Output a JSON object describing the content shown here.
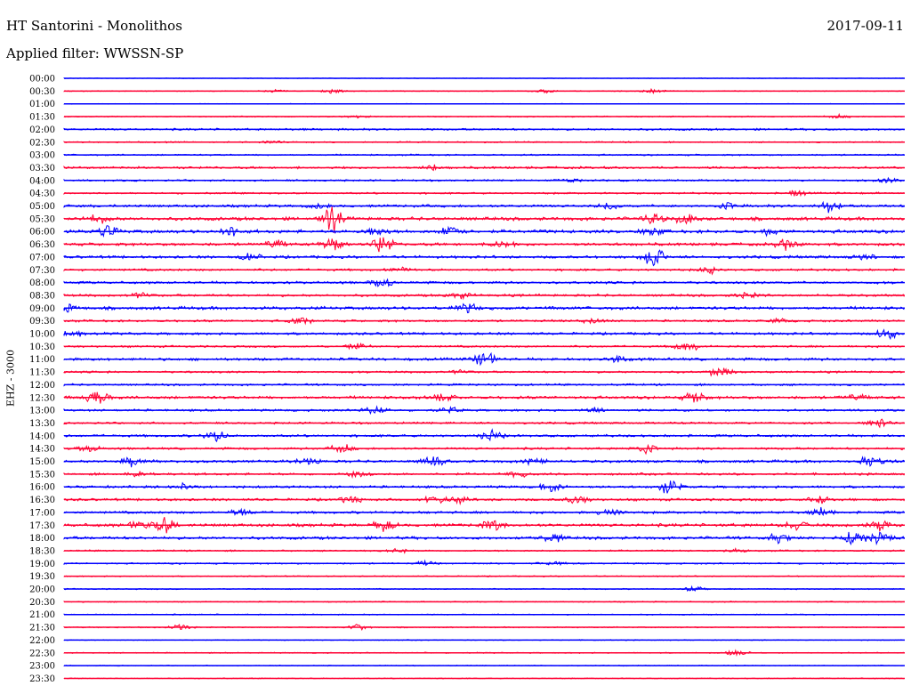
{
  "header": {
    "station": "HT Santorini - Monolithos",
    "date": "2017-09-11",
    "filter_label": "Applied filter: WWSSN-SP"
  },
  "chart_data": {
    "type": "line",
    "title": "HT Santorini - Monolithos",
    "channel_label": "EHZ - 3000",
    "colors": {
      "even_row": "#0000ff",
      "odd_row": "#ff0033"
    },
    "rows": [
      {
        "label": "00:00",
        "noise": 0.3,
        "events": []
      },
      {
        "label": "00:30",
        "noise": 0.4,
        "events": [
          [
            0.25,
            1.5
          ],
          [
            0.32,
            2.0
          ],
          [
            0.57,
            1.8
          ],
          [
            0.7,
            2.0
          ]
        ]
      },
      {
        "label": "01:00",
        "noise": 0.3,
        "events": []
      },
      {
        "label": "01:30",
        "noise": 0.5,
        "events": [
          [
            0.35,
            1.5
          ],
          [
            0.92,
            2.0
          ]
        ]
      },
      {
        "label": "02:00",
        "noise": 0.9,
        "events": []
      },
      {
        "label": "02:30",
        "noise": 0.6,
        "events": [
          [
            0.25,
            1.5
          ]
        ]
      },
      {
        "label": "03:00",
        "noise": 0.7,
        "events": []
      },
      {
        "label": "03:30",
        "noise": 1.0,
        "events": [
          [
            0.44,
            3.0
          ]
        ]
      },
      {
        "label": "04:00",
        "noise": 0.8,
        "events": [
          [
            0.6,
            2.0
          ],
          [
            0.98,
            2.5
          ]
        ]
      },
      {
        "label": "04:30",
        "noise": 0.8,
        "events": [
          [
            0.87,
            3.0
          ]
        ]
      },
      {
        "label": "05:00",
        "noise": 1.2,
        "events": [
          [
            0.3,
            2.0
          ],
          [
            0.65,
            3.0
          ],
          [
            0.79,
            3.0
          ],
          [
            0.91,
            6.0
          ]
        ]
      },
      {
        "label": "05:30",
        "noise": 1.5,
        "events": [
          [
            0.04,
            4.0
          ],
          [
            0.32,
            12.0
          ],
          [
            0.7,
            5.0
          ],
          [
            0.74,
            5.0
          ]
        ]
      },
      {
        "label": "06:00",
        "noise": 1.5,
        "events": [
          [
            0.05,
            5.0
          ],
          [
            0.2,
            4.0
          ],
          [
            0.37,
            4.0
          ],
          [
            0.46,
            4.0
          ],
          [
            0.7,
            4.0
          ],
          [
            0.84,
            3.0
          ]
        ]
      },
      {
        "label": "06:30",
        "noise": 1.3,
        "events": [
          [
            0.25,
            4.0
          ],
          [
            0.32,
            6.0
          ],
          [
            0.38,
            8.0
          ],
          [
            0.52,
            3.0
          ],
          [
            0.86,
            5.0
          ]
        ]
      },
      {
        "label": "07:00",
        "noise": 1.2,
        "events": [
          [
            0.22,
            3.0
          ],
          [
            0.7,
            10.0
          ],
          [
            0.95,
            3.0
          ]
        ]
      },
      {
        "label": "07:30",
        "noise": 1.0,
        "events": [
          [
            0.4,
            2.0
          ],
          [
            0.77,
            3.0
          ]
        ]
      },
      {
        "label": "08:00",
        "noise": 1.1,
        "events": [
          [
            0.38,
            5.0
          ]
        ]
      },
      {
        "label": "08:30",
        "noise": 1.1,
        "events": [
          [
            0.09,
            3.0
          ],
          [
            0.47,
            3.0
          ],
          [
            0.81,
            3.0
          ]
        ]
      },
      {
        "label": "09:00",
        "noise": 1.4,
        "events": [
          [
            0.0,
            5.0
          ],
          [
            0.48,
            4.0
          ]
        ]
      },
      {
        "label": "09:30",
        "noise": 1.0,
        "events": [
          [
            0.28,
            3.0
          ],
          [
            0.63,
            3.0
          ],
          [
            0.85,
            2.0
          ]
        ]
      },
      {
        "label": "10:00",
        "noise": 1.1,
        "events": [
          [
            0.01,
            4.0
          ],
          [
            0.98,
            5.0
          ]
        ]
      },
      {
        "label": "10:30",
        "noise": 0.9,
        "events": [
          [
            0.35,
            3.0
          ],
          [
            0.74,
            5.0
          ]
        ]
      },
      {
        "label": "11:00",
        "noise": 1.2,
        "events": [
          [
            0.5,
            7.0
          ],
          [
            0.66,
            3.0
          ]
        ]
      },
      {
        "label": "11:30",
        "noise": 0.9,
        "events": [
          [
            0.47,
            2.0
          ],
          [
            0.78,
            5.0
          ]
        ]
      },
      {
        "label": "12:00",
        "noise": 0.9,
        "events": []
      },
      {
        "label": "12:30",
        "noise": 1.3,
        "events": [
          [
            0.04,
            8.0
          ],
          [
            0.45,
            3.0
          ],
          [
            0.75,
            5.0
          ],
          [
            0.94,
            3.0
          ]
        ]
      },
      {
        "label": "13:00",
        "noise": 1.0,
        "events": [
          [
            0.37,
            4.0
          ],
          [
            0.46,
            3.0
          ],
          [
            0.63,
            3.0
          ]
        ]
      },
      {
        "label": "13:30",
        "noise": 0.9,
        "events": [
          [
            0.97,
            5.0
          ]
        ]
      },
      {
        "label": "14:00",
        "noise": 1.1,
        "events": [
          [
            0.18,
            5.0
          ],
          [
            0.51,
            5.0
          ]
        ]
      },
      {
        "label": "14:30",
        "noise": 1.0,
        "events": [
          [
            0.03,
            3.0
          ],
          [
            0.33,
            5.0
          ],
          [
            0.69,
            5.0
          ]
        ]
      },
      {
        "label": "15:00",
        "noise": 1.2,
        "events": [
          [
            0.08,
            4.0
          ],
          [
            0.29,
            4.0
          ],
          [
            0.44,
            4.0
          ],
          [
            0.56,
            3.0
          ],
          [
            0.96,
            6.0
          ]
        ]
      },
      {
        "label": "15:30",
        "noise": 1.0,
        "events": [
          [
            0.09,
            3.0
          ],
          [
            0.35,
            3.0
          ],
          [
            0.54,
            3.0
          ]
        ]
      },
      {
        "label": "16:00",
        "noise": 1.1,
        "events": [
          [
            0.14,
            3.0
          ],
          [
            0.58,
            4.0
          ],
          [
            0.72,
            7.0
          ]
        ]
      },
      {
        "label": "16:30",
        "noise": 1.1,
        "events": [
          [
            0.34,
            3.0
          ],
          [
            0.44,
            4.0
          ],
          [
            0.47,
            3.0
          ],
          [
            0.61,
            4.0
          ],
          [
            0.9,
            4.0
          ]
        ]
      },
      {
        "label": "17:00",
        "noise": 1.1,
        "events": [
          [
            0.21,
            3.0
          ],
          [
            0.65,
            4.0
          ],
          [
            0.9,
            4.0
          ]
        ]
      },
      {
        "label": "17:30",
        "noise": 1.4,
        "events": [
          [
            0.09,
            4.0
          ],
          [
            0.12,
            7.0
          ],
          [
            0.38,
            5.0
          ],
          [
            0.51,
            5.0
          ],
          [
            0.87,
            4.0
          ],
          [
            0.97,
            5.0
          ]
        ]
      },
      {
        "label": "18:00",
        "noise": 1.3,
        "events": [
          [
            0.58,
            4.0
          ],
          [
            0.85,
            4.0
          ],
          [
            0.94,
            6.0
          ],
          [
            0.97,
            5.0
          ]
        ]
      },
      {
        "label": "18:30",
        "noise": 0.7,
        "events": [
          [
            0.4,
            2.0
          ],
          [
            0.8,
            2.0
          ]
        ]
      },
      {
        "label": "19:00",
        "noise": 0.7,
        "events": [
          [
            0.43,
            2.0
          ],
          [
            0.58,
            2.0
          ]
        ]
      },
      {
        "label": "19:30",
        "noise": 0.5,
        "events": []
      },
      {
        "label": "20:00",
        "noise": 0.5,
        "events": [
          [
            0.75,
            3.0
          ]
        ]
      },
      {
        "label": "20:30",
        "noise": 0.5,
        "events": []
      },
      {
        "label": "21:00",
        "noise": 0.5,
        "events": []
      },
      {
        "label": "21:30",
        "noise": 0.5,
        "events": [
          [
            0.14,
            3.0
          ],
          [
            0.35,
            3.0
          ]
        ]
      },
      {
        "label": "22:00",
        "noise": 0.4,
        "events": []
      },
      {
        "label": "22:30",
        "noise": 0.5,
        "events": [
          [
            0.8,
            2.5
          ]
        ]
      },
      {
        "label": "23:00",
        "noise": 0.4,
        "events": []
      },
      {
        "label": "23:30",
        "noise": 0.4,
        "events": []
      }
    ]
  }
}
